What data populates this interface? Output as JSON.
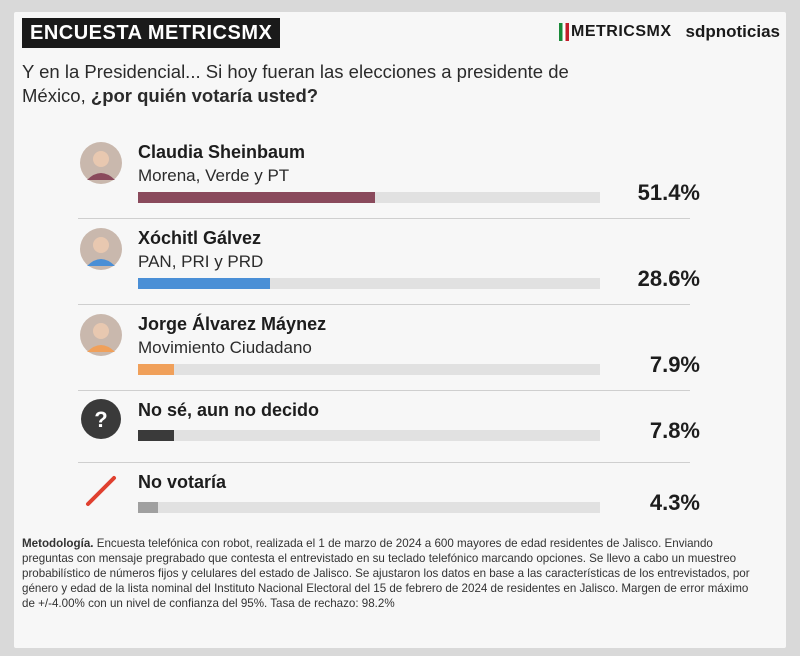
{
  "header": {
    "badge": "ENCUESTA METRICSMX",
    "brand_logo": "METRICSMX",
    "brand_partner": "sdpnoticias"
  },
  "question": {
    "text": "Y en la Presidencial... Si hoy fueran las elecciones a presidente de México, ",
    "bold": "¿por quién votaría usted?"
  },
  "chart_data": {
    "type": "bar",
    "categories": [
      "Claudia Sheinbaum",
      "Xóchitl Gálvez",
      "Jorge Álvarez Máynez",
      "No sé, aun no decido",
      "No votaría"
    ],
    "values": [
      51.4,
      28.6,
      7.9,
      7.8,
      4.3
    ],
    "xlim": [
      0,
      100
    ],
    "title": "",
    "xlabel": "",
    "ylabel": ""
  },
  "rows": [
    {
      "name": "Claudia Sheinbaum",
      "party": "Morena, Verde y PT",
      "value": 51.4,
      "pct_label": "51.4%",
      "color": "#8a4a5c",
      "icon": "avatar-icon"
    },
    {
      "name": "Xóchitl Gálvez",
      "party": "PAN, PRI y PRD",
      "value": 28.6,
      "pct_label": "28.6%",
      "color": "#4a8fd6",
      "icon": "avatar-icon"
    },
    {
      "name": "Jorge Álvarez Máynez",
      "party": "Movimiento Ciudadano",
      "value": 7.9,
      "pct_label": "7.9%",
      "color": "#f0a05a",
      "icon": "avatar-icon"
    },
    {
      "name": "No sé, aun no decido",
      "party": "",
      "value": 7.8,
      "pct_label": "7.8%",
      "color": "#3a3a3a",
      "icon": "question-icon"
    },
    {
      "name": "No votaría",
      "party": "",
      "value": 4.3,
      "pct_label": "4.3%",
      "color": "#a0a0a0",
      "icon": "slash-icon"
    }
  ],
  "methodology": {
    "label": "Metodología.",
    "text": " Encuesta telefónica con robot, realizada el 1 de marzo de 2024 a 600 mayores de edad residentes de Jalisco. Enviando preguntas con mensaje pregrabado que contesta el entrevistado en su teclado telefónico marcando opciones. Se llevo a cabo un muestreo probabilístico de números fijos y celulares del estado de Jalisco. Se ajustaron los datos en base a las características de los entrevistados, por género y edad de la lista nominal del Instituto Nacional Electoral del 15 de febrero de 2024 de residentes en Jalisco. Margen de error máximo de +/-4.00% con un nivel de confianza del 95%. Tasa de rechazo: 98.2%"
  }
}
